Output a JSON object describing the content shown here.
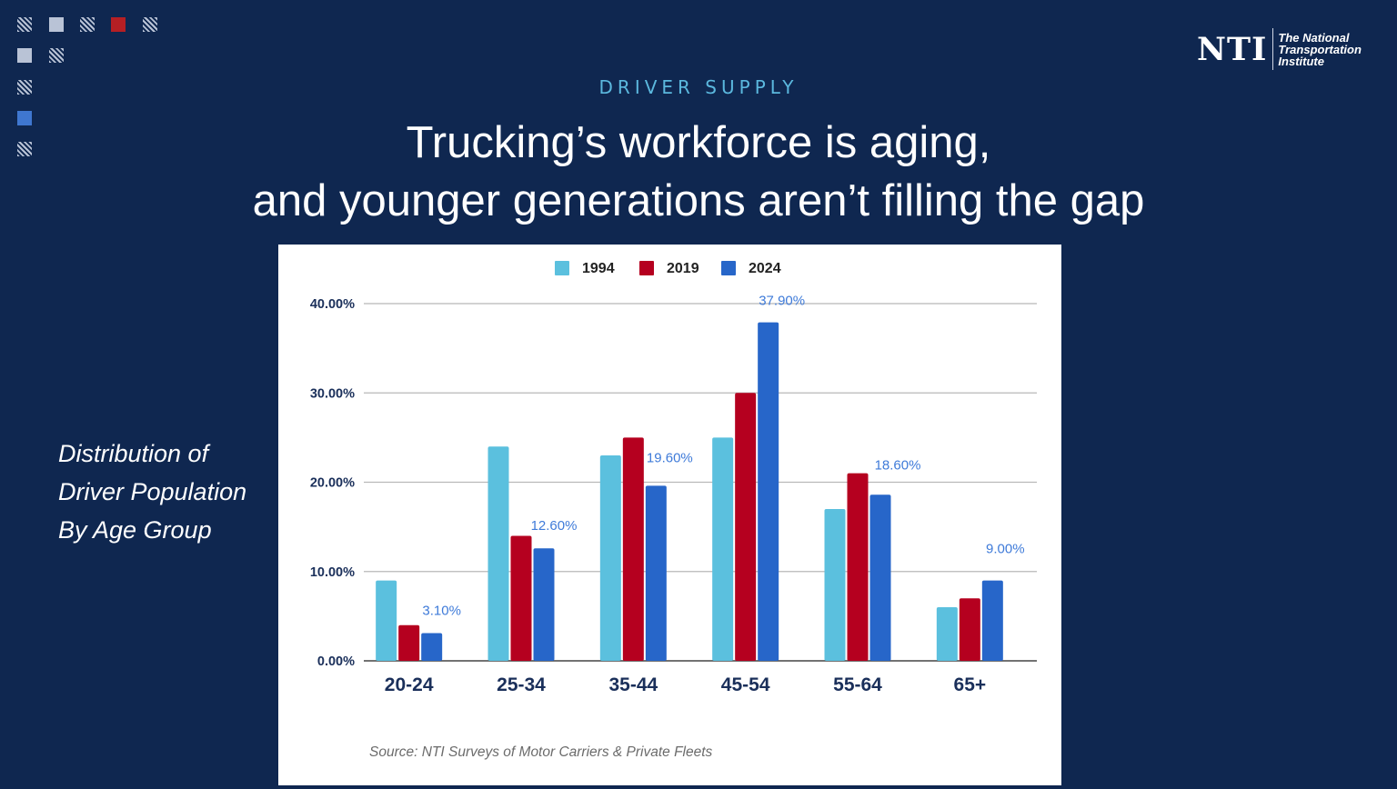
{
  "header": {
    "kicker": "DRIVER SUPPLY",
    "title_line1": "Trucking’s workforce is aging,",
    "title_line2": "and younger generations aren’t filling the gap"
  },
  "logo": {
    "mark": "NTI",
    "line1": "The National",
    "line2": "Transportation",
    "line3": "Institute"
  },
  "side_label": {
    "line1": "Distribution of",
    "line2": "Driver Population",
    "line3": "By Age Group"
  },
  "colors": {
    "background": "#0f2750",
    "accent": "#5bb8de",
    "series_1994": "#5bc0de",
    "series_2019": "#b5001f",
    "series_2024": "#2766c9",
    "label_2024": "#3f7bd9",
    "axis_text": "#1a2f5a"
  },
  "chart_data": {
    "type": "bar",
    "title": "",
    "xlabel": "",
    "ylabel": "",
    "categories": [
      "20-24",
      "25-34",
      "35-44",
      "45-54",
      "55-64",
      "65+"
    ],
    "series": [
      {
        "name": "1994",
        "values": [
          9,
          24,
          23,
          25,
          17,
          6
        ]
      },
      {
        "name": "2019",
        "values": [
          4,
          14,
          25,
          30,
          21,
          7
        ]
      },
      {
        "name": "2024",
        "values": [
          3.1,
          12.6,
          19.6,
          37.9,
          18.6,
          9.0
        ],
        "data_labels": [
          "3.10%",
          "12.60%",
          "19.60%",
          "37.90%",
          "18.60%",
          "9.00%"
        ]
      }
    ],
    "ylim": [
      0,
      40
    ],
    "yticks": [
      0,
      10,
      20,
      30,
      40
    ],
    "ytick_labels": [
      "0.00%",
      "10.00%",
      "20.00%",
      "30.00%",
      "40.00%"
    ],
    "grid": true,
    "legend_position": "top-center",
    "source": "Source: NTI Surveys of Motor Carriers & Private Fleets"
  }
}
